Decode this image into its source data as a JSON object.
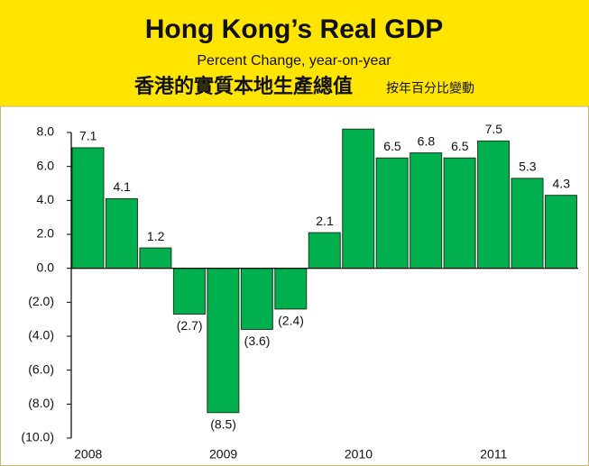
{
  "chart_data": {
    "type": "bar",
    "title": "Hong Kong’s Real GDP",
    "subtitle": "Percent Change, year-on-year",
    "title_zh": "香港的實質本地生產總值",
    "subtitle_zh": "按年百分比變動",
    "categories": [
      "2008",
      null,
      null,
      null,
      "2009",
      null,
      null,
      null,
      "2010",
      null,
      null,
      null,
      "2011",
      null,
      null
    ],
    "values": [
      7.1,
      4.1,
      1.2,
      -2.7,
      -8.5,
      -3.6,
      -2.4,
      2.1,
      8.2,
      6.5,
      6.8,
      6.5,
      7.5,
      5.3,
      4.3
    ],
    "value_labels": [
      "7.1",
      "4.1",
      "1.2",
      "(2.7)",
      "(8.5)",
      "(3.6)",
      "(2.4)",
      "2.1",
      null,
      "6.5",
      "6.8",
      "6.5",
      "7.5",
      "5.3",
      "4.3"
    ],
    "color": "#00b04f",
    "negative_label_color": "#e02828",
    "ylim": [
      -10,
      8
    ],
    "yticks": [
      {
        "value": 8,
        "label": "8.0"
      },
      {
        "value": 6,
        "label": "6.0"
      },
      {
        "value": 4,
        "label": "4.0"
      },
      {
        "value": 2,
        "label": "2.0"
      },
      {
        "value": 0,
        "label": "0.0"
      },
      {
        "value": -2,
        "label": "(2.0)"
      },
      {
        "value": -4,
        "label": "(4.0)"
      },
      {
        "value": -6,
        "label": "(6.0)"
      },
      {
        "value": -8,
        "label": "(8.0)"
      },
      {
        "value": -10,
        "label": "(10.0)"
      }
    ]
  }
}
